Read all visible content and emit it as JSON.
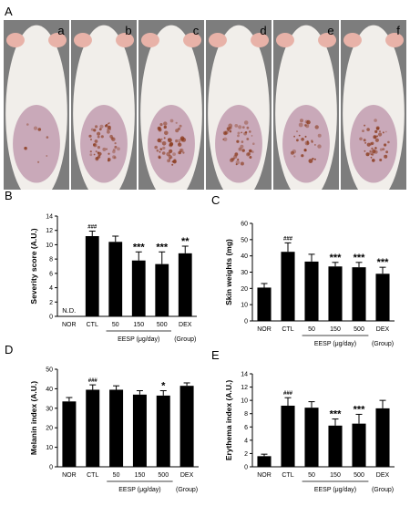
{
  "photo_panel": {
    "letter": "A",
    "mouse_labels": [
      "a",
      "b",
      "c",
      "d",
      "e",
      "f"
    ],
    "lesion_intensity": [
      0.15,
      0.85,
      1.0,
      0.8,
      0.55,
      0.75
    ],
    "colors": {
      "background": "#7d7d7d",
      "fur": "#f1eeea",
      "skin": "#c9a9b9",
      "lesion": "#8a3a1c"
    }
  },
  "chart_data": [
    {
      "letter": "B",
      "type": "bar",
      "categories": [
        "NOR",
        "CTL",
        "50",
        "150",
        "500",
        "DEX"
      ],
      "values": [
        0,
        11.2,
        10.4,
        7.8,
        7.3,
        8.8
      ],
      "errors": [
        0,
        0.7,
        0.8,
        1.2,
        1.7,
        1.0
      ],
      "value_labels": [
        "N.D.",
        "",
        "",
        "",
        "",
        ""
      ],
      "annotations": [
        "",
        "###",
        "",
        "***",
        "***",
        "**"
      ],
      "ylabel": "Severity score (A.U.)",
      "ylim": [
        0,
        14
      ],
      "yticks": [
        0,
        2,
        4,
        6,
        8,
        10,
        12,
        14
      ],
      "xlabel": "EESP (μg/day)",
      "xlabel_right": "(Group)",
      "grid": false
    },
    {
      "letter": "C",
      "type": "bar",
      "categories": [
        "NOR",
        "CTL",
        "50",
        "150",
        "500",
        "DEX"
      ],
      "values": [
        20.5,
        42.5,
        36.5,
        33.5,
        33.0,
        29.0
      ],
      "errors": [
        2.5,
        5.5,
        4.5,
        2.5,
        3.0,
        4.0
      ],
      "value_labels": [
        "",
        "",
        "",
        "",
        "",
        ""
      ],
      "annotations": [
        "",
        "###",
        "",
        "***",
        "***",
        "***"
      ],
      "ylabel": "Skin weights (mg)",
      "ylim": [
        0,
        60
      ],
      "yticks": [
        0,
        10,
        20,
        30,
        40,
        50,
        60
      ],
      "xlabel": "EESP (μg/day)",
      "xlabel_right": "(Group)",
      "grid": false
    },
    {
      "letter": "D",
      "type": "bar",
      "categories": [
        "NOR",
        "CTL",
        "50",
        "150",
        "500",
        "DEX"
      ],
      "values": [
        33.5,
        39.5,
        39.5,
        37.0,
        36.5,
        41.5
      ],
      "errors": [
        2.0,
        2.5,
        2.0,
        2.0,
        2.5,
        1.5
      ],
      "value_labels": [
        "",
        "",
        "",
        "",
        "",
        ""
      ],
      "annotations": [
        "",
        "###",
        "",
        "",
        "*",
        ""
      ],
      "ylabel": "Melanin index (A.U.)",
      "ylim": [
        0,
        50
      ],
      "yticks": [
        0,
        10,
        20,
        30,
        40,
        50
      ],
      "xlabel": "EESP (μg/day)",
      "xlabel_right": "(Group)",
      "grid": false
    },
    {
      "letter": "E",
      "type": "bar",
      "categories": [
        "NOR",
        "CTL",
        "50",
        "150",
        "500",
        "DEX"
      ],
      "values": [
        1.6,
        9.2,
        8.9,
        6.2,
        6.5,
        8.8
      ],
      "errors": [
        0.3,
        1.2,
        0.9,
        1.0,
        1.4,
        1.2
      ],
      "value_labels": [
        "",
        "",
        "",
        "",
        "",
        ""
      ],
      "annotations": [
        "",
        "###",
        "",
        "***",
        "***",
        ""
      ],
      "ylabel": "Erythema index (A.U.)",
      "ylim": [
        0,
        14
      ],
      "yticks": [
        0,
        2,
        4,
        6,
        8,
        10,
        12,
        14
      ],
      "xlabel": "EESP (μg/day)",
      "xlabel_right": "(Group)",
      "grid": false
    }
  ]
}
